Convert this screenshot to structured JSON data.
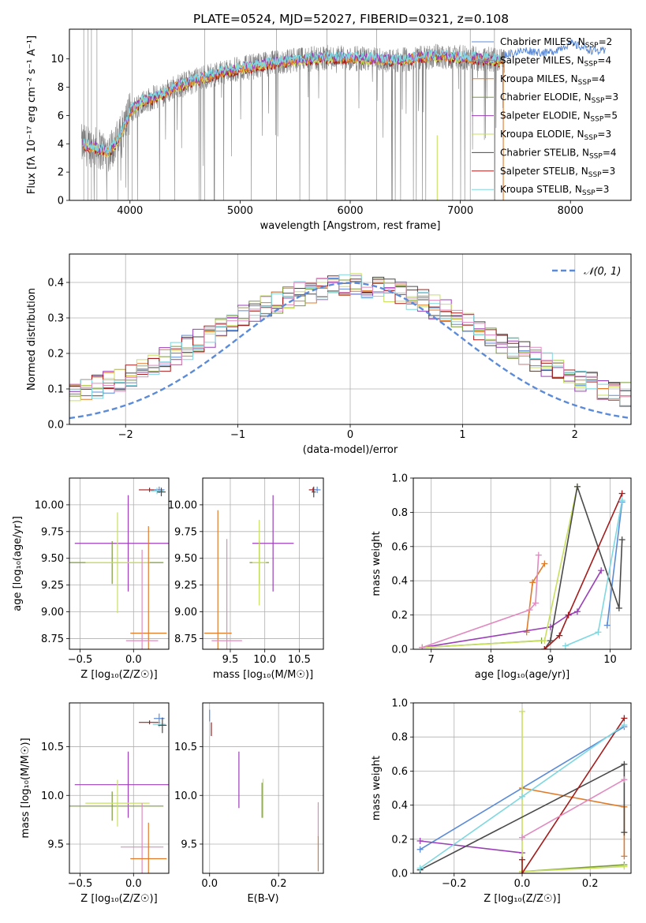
{
  "figure": {
    "title": "PLATE=0524, MJD=52027, FIBERID=0321, z=0.108"
  },
  "colors": {
    "Chabrier MILES": "#5b8bd8",
    "Salpeter MILES": "#8c8c8c",
    "Kroupa MILES": "#e07b2a",
    "Chabrier ELODIE": "#7a9a3a",
    "Salpeter ELODIE": "#9b3fb8",
    "Kroupa ELODIE": "#c8e060",
    "Chabrier STELIB": "#4a4a4a",
    "Salpeter STELIB": "#a51c1c",
    "Kroupa STELIB": "#7fd8e0",
    "pink": "#e08ac0",
    "data": "#808080"
  },
  "chart_data": [
    {
      "id": "spectrum",
      "type": "line",
      "xlabel": "wavelength [Angstrom, rest frame]",
      "ylabel": "Flux [fλ 10⁻¹⁷ erg cm⁻² s⁻¹ A⁻¹]",
      "xlim": [
        3450,
        8550
      ],
      "ylim": [
        0,
        12.1
      ],
      "xticks": [
        4000,
        5000,
        6000,
        7000,
        8000
      ],
      "yticks": [
        0,
        2,
        4,
        6,
        8,
        10
      ],
      "legend_position": "top-right",
      "legend": [
        {
          "text": "Chabrier MILES, N_SSP=2",
          "color_key": "Chabrier MILES"
        },
        {
          "text": "Salpeter MILES, N_SSP=4",
          "color_key": "Salpeter MILES"
        },
        {
          "text": "Kroupa MILES, N_SSP=4",
          "color_key": "Kroupa MILES"
        },
        {
          "text": "Chabrier ELODIE, N_SSP=3",
          "color_key": "Chabrier ELODIE"
        },
        {
          "text": "Salpeter ELODIE, N_SSP=5",
          "color_key": "Salpeter ELODIE"
        },
        {
          "text": "Kroupa ELODIE, N_SSP=3",
          "color_key": "Kroupa ELODIE"
        },
        {
          "text": "Chabrier STELIB, N_SSP=4",
          "color_key": "Chabrier STELIB"
        },
        {
          "text": "Salpeter STELIB, N_SSP=3",
          "color_key": "Salpeter STELIB"
        },
        {
          "text": "Kroupa STELIB, N_SSP=3",
          "color_key": "Kroupa STELIB"
        }
      ],
      "model_trend": {
        "x": [
          3600,
          3700,
          3800,
          3900,
          4000,
          4100,
          4200,
          4300,
          4400,
          4600,
          4800,
          5000,
          5200,
          5500,
          5800,
          6100,
          6400,
          6800,
          7200,
          7400
        ],
        "y": [
          3.9,
          3.7,
          3.4,
          4.4,
          6.2,
          7.0,
          7.2,
          7.5,
          8.0,
          8.5,
          9.0,
          9.3,
          9.6,
          9.9,
          10.1,
          10.0,
          9.9,
          10.2,
          10.0,
          9.9
        ]
      },
      "miles_extension": {
        "x": [
          7400,
          7600,
          7800,
          8000,
          8200,
          8320
        ],
        "y": [
          10.3,
          10.6,
          10.4,
          11.1,
          10.6,
          10.5
        ]
      }
    },
    {
      "id": "residuals",
      "type": "area",
      "xlabel": "(data-model)/error",
      "ylabel": "Normed distribution",
      "xlim": [
        -2.5,
        2.5
      ],
      "ylim": [
        0,
        0.48
      ],
      "xticks": [
        -2,
        -1,
        0,
        1,
        2
      ],
      "yticks": [
        0.0,
        0.1,
        0.2,
        0.3,
        0.4
      ],
      "grid": true,
      "legend_position": "top-right",
      "legend": [
        {
          "text": "𝒩(0, 1)",
          "color": "#5b8bd8"
        }
      ],
      "bin_width": 0.1,
      "normal_curve": {
        "mean": 0,
        "sigma": 1
      }
    },
    {
      "id": "age-vs-Z",
      "type": "scatter",
      "xlabel": "Z [log₁₀(Z/Z☉)]",
      "ylabel": "age  [log₁₀(age/yr)]",
      "xlim": [
        -0.6,
        0.33
      ],
      "ylim": [
        8.65,
        10.25
      ],
      "xticks": [
        -0.5,
        0.0
      ],
      "yticks": [
        8.75,
        9.0,
        9.25,
        9.5,
        9.75,
        10.0
      ],
      "grid": true,
      "points": [
        {
          "model": "Salpeter STELIB",
          "x": 0.15,
          "xerr": 0.1,
          "y": 10.14,
          "yerr": 0.02
        },
        {
          "model": "Chabrier MILES",
          "x": 0.24,
          "xerr": 0.05,
          "y": 10.14,
          "yerr": 0.03
        },
        {
          "model": "Kroupa STELIB",
          "x": 0.22,
          "xerr": 0.06,
          "y": 10.13,
          "yerr": 0.03
        },
        {
          "model": "Chabrier STELIB",
          "x": 0.26,
          "xerr": 0.04,
          "y": 10.12,
          "yerr": 0.04
        },
        {
          "model": "Salpeter ELODIE",
          "x": -0.05,
          "xerr": 0.5,
          "y": 9.64,
          "yerr": 0.45
        },
        {
          "model": "Chabrier ELODIE",
          "x": -0.2,
          "xerr": 0.48,
          "y": 9.46,
          "yerr": 0.2
        },
        {
          "model": "Kroupa ELODIE",
          "x": -0.15,
          "xerr": 0.3,
          "y": 9.46,
          "yerr": 0.47
        },
        {
          "model": "Kroupa MILES",
          "x": 0.14,
          "xerr": 0.17,
          "y": 8.8,
          "yerr": 1.0
        },
        {
          "model": "pink",
          "x": 0.08,
          "xerr": 0.15,
          "y": 8.73,
          "yerr": 0.85
        }
      ]
    },
    {
      "id": "age-vs-mass",
      "type": "scatter",
      "xlabel": "mass [log₁₀(M/M☉)]",
      "ylabel": "",
      "xlim": [
        9.1,
        10.85
      ],
      "ylim": [
        8.65,
        10.25
      ],
      "xticks": [
        9.5,
        10.0,
        10.5
      ],
      "yticks": [
        8.75,
        9.0,
        9.25,
        9.5,
        9.75,
        10.0
      ],
      "grid": true,
      "points": [
        {
          "model": "Salpeter STELIB",
          "x": 10.7,
          "xerr": 0.06,
          "y": 10.14,
          "yerr": 0.02
        },
        {
          "model": "Chabrier MILES",
          "x": 10.76,
          "xerr": 0.05,
          "y": 10.14,
          "yerr": 0.03
        },
        {
          "model": "Chabrier STELIB",
          "x": 10.71,
          "xerr": 0.03,
          "y": 10.12,
          "yerr": 0.05
        },
        {
          "model": "Salpeter ELODIE",
          "x": 10.12,
          "xerr": 0.3,
          "y": 9.64,
          "yerr": 0.45
        },
        {
          "model": "Chabrier ELODIE",
          "x": 9.92,
          "xerr": 0.14,
          "y": 9.46,
          "yerr": 0.2
        },
        {
          "model": "Kroupa ELODIE",
          "x": 9.92,
          "xerr": 0.1,
          "y": 9.46,
          "yerr": 0.4
        },
        {
          "model": "Kroupa MILES",
          "x": 9.32,
          "xerr": 0.2,
          "y": 8.8,
          "yerr": 1.15
        },
        {
          "model": "pink",
          "x": 9.45,
          "xerr": 0.22,
          "y": 8.73,
          "yerr": 0.95
        }
      ]
    },
    {
      "id": "weight-vs-age",
      "type": "line",
      "xlabel": "age  [log₁₀(age/yr)]",
      "ylabel": "mass weight",
      "xlim": [
        6.7,
        10.35
      ],
      "ylim": [
        0,
        1.0
      ],
      "xticks": [
        7,
        8,
        9,
        10
      ],
      "yticks": [
        0.0,
        0.2,
        0.4,
        0.6,
        0.8,
        1.0
      ],
      "grid": true,
      "series": [
        {
          "model": "Chabrier MILES",
          "x": [
            9.95,
            10.2
          ],
          "y": [
            0.14,
            0.86
          ]
        },
        {
          "model": "Kroupa MILES",
          "x": [
            8.6,
            8.7,
            8.9
          ],
          "y": [
            0.1,
            0.39,
            0.5
          ]
        },
        {
          "model": "Salpeter ELODIE",
          "x": [
            6.85,
            9.0,
            9.3,
            9.45,
            9.85
          ],
          "y": [
            0.01,
            0.13,
            0.2,
            0.22,
            0.46
          ]
        },
        {
          "model": "Chabrier ELODIE",
          "x": [
            6.85,
            8.85
          ],
          "y": [
            0.01,
            0.05
          ]
        },
        {
          "model": "Kroupa ELODIE",
          "x": [
            6.85,
            8.9,
            9.45
          ],
          "y": [
            0.01,
            0.05,
            0.95
          ]
        },
        {
          "model": "Chabrier STELIB",
          "x": [
            8.9,
            9.0,
            9.45,
            10.15,
            10.2
          ],
          "y": [
            0.0,
            0.05,
            0.95,
            0.24,
            0.64
          ]
        },
        {
          "model": "Salpeter STELIB",
          "x": [
            8.9,
            9.15,
            9.3,
            10.2
          ],
          "y": [
            0.0,
            0.08,
            0.2,
            0.91
          ]
        },
        {
          "model": "Kroupa STELIB",
          "x": [
            9.25,
            9.8,
            10.2
          ],
          "y": [
            0.02,
            0.1,
            0.87
          ]
        },
        {
          "model": "pink",
          "x": [
            6.85,
            8.65,
            8.75,
            8.8
          ],
          "y": [
            0.01,
            0.23,
            0.27,
            0.55
          ]
        }
      ]
    },
    {
      "id": "mass-vs-Z",
      "type": "scatter",
      "xlabel": "Z [log₁₀(Z/Z☉)]",
      "ylabel": "mass [log₁₀(M/M☉)]",
      "xlim": [
        -0.6,
        0.33
      ],
      "ylim": [
        9.2,
        10.95
      ],
      "xticks": [
        -0.5,
        0.0
      ],
      "yticks": [
        9.5,
        10.0,
        10.5
      ],
      "grid": true,
      "points": [
        {
          "model": "Salpeter STELIB",
          "x": 0.15,
          "xerr": 0.1,
          "y": 10.75,
          "yerr": 0.02
        },
        {
          "model": "Chabrier MILES",
          "x": 0.24,
          "xerr": 0.05,
          "y": 10.79,
          "yerr": 0.05
        },
        {
          "model": "Kroupa STELIB",
          "x": 0.24,
          "xerr": 0.06,
          "y": 10.73,
          "yerr": 0.03
        },
        {
          "model": "Chabrier STELIB",
          "x": 0.27,
          "xerr": 0.04,
          "y": 10.72,
          "yerr": 0.08
        },
        {
          "model": "Salpeter ELODIE",
          "x": -0.05,
          "xerr": 0.5,
          "y": 10.11,
          "yerr": 0.34
        },
        {
          "model": "Chabrier ELODIE",
          "x": -0.2,
          "xerr": 0.48,
          "y": 9.89,
          "yerr": 0.15
        },
        {
          "model": "Kroupa ELODIE",
          "x": -0.15,
          "xerr": 0.3,
          "y": 9.92,
          "yerr": 0.24
        },
        {
          "model": "pink",
          "x": 0.08,
          "xerr": 0.2,
          "y": 9.47,
          "yerr": 0.45
        },
        {
          "model": "Kroupa MILES",
          "x": 0.14,
          "xerr": 0.17,
          "y": 9.35,
          "yerr": 0.37
        }
      ]
    },
    {
      "id": "mass-vs-EBV",
      "type": "scatter",
      "xlabel": "E(B-V)",
      "ylabel": "",
      "xlim": [
        -0.02,
        0.33
      ],
      "ylim": [
        9.2,
        10.95
      ],
      "xticks": [
        0.0,
        0.2
      ],
      "yticks": [
        9.5,
        10.0,
        10.5
      ],
      "grid": true,
      "points": [
        {
          "model": "Chabrier MILES",
          "x": 0.0,
          "y": 10.82,
          "yerr": 0.06
        },
        {
          "model": "Salpeter STELIB",
          "x": 0.005,
          "y": 10.68,
          "yerr": 0.07
        },
        {
          "model": "Salpeter ELODIE",
          "x": 0.085,
          "y": 10.16,
          "yerr": 0.29
        },
        {
          "model": "Kroupa ELODIE",
          "x": 0.155,
          "y": 9.97,
          "yerr": 0.2
        },
        {
          "model": "Chabrier ELODIE",
          "x": 0.152,
          "y": 9.95,
          "yerr": 0.18
        },
        {
          "model": "pink",
          "x": 0.315,
          "y": 9.75,
          "yerr": 0.18
        },
        {
          "model": "Kroupa MILES",
          "x": 0.315,
          "y": 9.4,
          "yerr": 0.18
        }
      ]
    },
    {
      "id": "weight-vs-Z",
      "type": "line",
      "xlabel": "Z [log₁₀(Z/Z☉)]",
      "ylabel": "mass weight",
      "xlim": [
        -0.32,
        0.32
      ],
      "ylim": [
        0,
        1.0
      ],
      "xticks": [
        -0.2,
        0.0,
        0.2
      ],
      "yticks": [
        0.0,
        0.2,
        0.4,
        0.6,
        0.8,
        1.0
      ],
      "grid": true,
      "series": [
        {
          "model": "Chabrier MILES",
          "x": [
            -0.3,
            0.3
          ],
          "y": [
            0.14,
            0.86
          ]
        },
        {
          "model": "Kroupa MILES",
          "x": [
            0.0,
            0.3,
            0.3
          ],
          "y": [
            0.5,
            0.39,
            0.1
          ]
        },
        {
          "model": "Salpeter ELODIE",
          "x": [
            -0.3,
            0.0
          ],
          "y": [
            0.19,
            0.12
          ]
        },
        {
          "model": "Chabrier ELODIE",
          "x": [
            0.0,
            0.3
          ],
          "y": [
            0.01,
            0.05
          ]
        },
        {
          "model": "Kroupa ELODIE",
          "x": [
            0.0,
            0.0,
            0.3
          ],
          "y": [
            0.95,
            0.01,
            0.04
          ]
        },
        {
          "model": "Chabrier STELIB",
          "x": [
            -0.3,
            0.3,
            0.3
          ],
          "y": [
            0.02,
            0.64,
            0.24
          ]
        },
        {
          "model": "Salpeter STELIB",
          "x": [
            0.0,
            0.0,
            0.3
          ],
          "y": [
            0.08,
            0.0,
            0.91
          ]
        },
        {
          "model": "Kroupa STELIB",
          "x": [
            -0.3,
            0.0,
            0.3
          ],
          "y": [
            0.03,
            0.45,
            0.87
          ]
        },
        {
          "model": "pink",
          "x": [
            0.0,
            0.3
          ],
          "y": [
            0.21,
            0.55
          ]
        }
      ]
    }
  ]
}
